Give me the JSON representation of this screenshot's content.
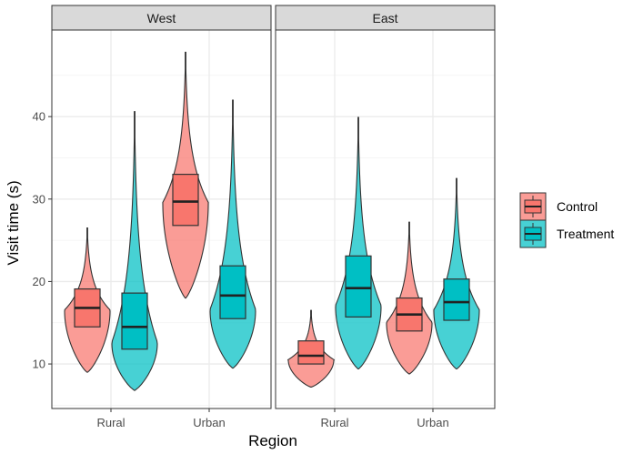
{
  "chart_data": {
    "type": "violin-box",
    "title": "",
    "xlabel": "Region",
    "ylabel": "Visit time (s)",
    "ylim": [
      4.6,
      50.5
    ],
    "yticks": [
      10,
      20,
      30,
      40
    ],
    "categories": [
      "Rural",
      "Urban"
    ],
    "facets": [
      "West",
      "East"
    ],
    "grid": true,
    "legend_position": "right",
    "colors": {
      "Control": "#F8766D",
      "Treatment": "#00BFC4"
    },
    "series": [
      {
        "name": "Control",
        "data": [
          {
            "facet": "West",
            "category": "Rural",
            "min": 9.0,
            "q1": 14.5,
            "median": 16.8,
            "q3": 19.1,
            "max": 26.5,
            "mode": 16.5
          },
          {
            "facet": "West",
            "category": "Urban",
            "min": 18.0,
            "q1": 26.8,
            "median": 29.7,
            "q3": 33.0,
            "max": 47.8,
            "mode": 29.5
          },
          {
            "facet": "East",
            "category": "Rural",
            "min": 7.2,
            "q1": 10.0,
            "median": 11.0,
            "q3": 12.8,
            "max": 16.5,
            "mode": 10.5
          },
          {
            "facet": "East",
            "category": "Urban",
            "min": 8.8,
            "q1": 14.0,
            "median": 16.0,
            "q3": 18.0,
            "max": 27.2,
            "mode": 15.0
          }
        ]
      },
      {
        "name": "Treatment",
        "data": [
          {
            "facet": "West",
            "category": "Rural",
            "min": 6.8,
            "q1": 11.8,
            "median": 14.5,
            "q3": 18.6,
            "max": 40.6,
            "mode": 12.5
          },
          {
            "facet": "West",
            "category": "Urban",
            "min": 9.5,
            "q1": 15.5,
            "median": 18.3,
            "q3": 21.9,
            "max": 42.0,
            "mode": 16.5
          },
          {
            "facet": "East",
            "category": "Rural",
            "min": 9.4,
            "q1": 15.7,
            "median": 19.2,
            "q3": 23.1,
            "max": 39.9,
            "mode": 17.0
          },
          {
            "facet": "East",
            "category": "Urban",
            "min": 9.4,
            "q1": 15.3,
            "median": 17.5,
            "q3": 20.3,
            "max": 32.5,
            "mode": 16.5
          }
        ]
      }
    ]
  }
}
